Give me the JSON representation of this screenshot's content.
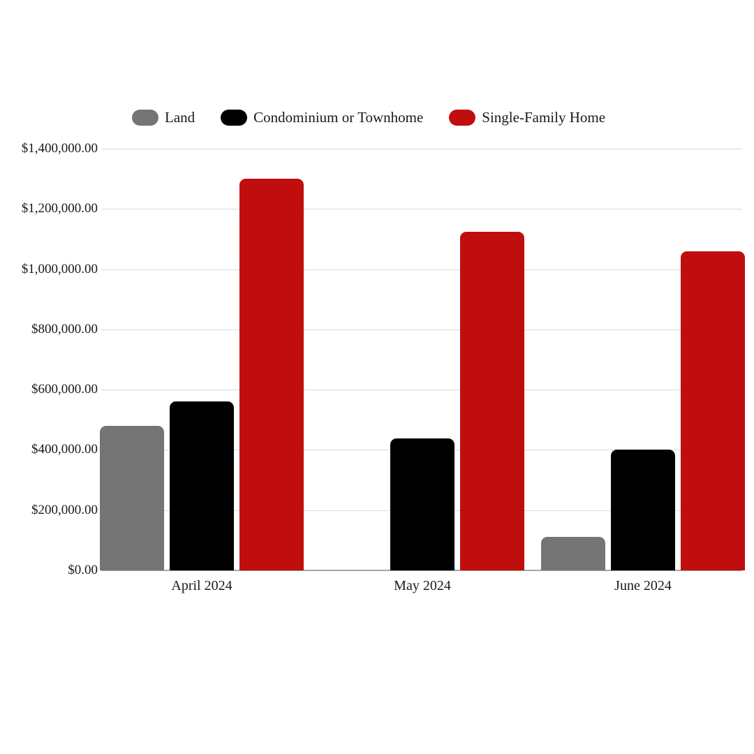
{
  "chart_data": {
    "type": "bar",
    "title": "",
    "categories": [
      "April 2024",
      "May 2024",
      "June 2024"
    ],
    "series": [
      {
        "name": "Land",
        "color": "#757575",
        "values": [
          479000,
          null,
          111000
        ]
      },
      {
        "name": "Condominium or Townhome",
        "color": "#000000",
        "values": [
          560000,
          438000,
          400000
        ]
      },
      {
        "name": "Single-Family Home",
        "color": "#c00d0d",
        "values": [
          1300000,
          1124000,
          1060000
        ]
      }
    ],
    "y_axis": {
      "min": 0,
      "max": 1400000,
      "step": 200000,
      "tick_labels": [
        "$0.00",
        "$200,000.00",
        "$400,000.00",
        "$600,000.00",
        "$800,000.00",
        "$1,000,000.00",
        "$1,200,000.00",
        "$1,400,000.00"
      ]
    },
    "legend_position": "top",
    "grid": true
  },
  "colors": {
    "background": "#ffffff",
    "gridline": "#d9d9d9",
    "axis_line": "#a6a6a6",
    "text": "#1a1a1a"
  }
}
